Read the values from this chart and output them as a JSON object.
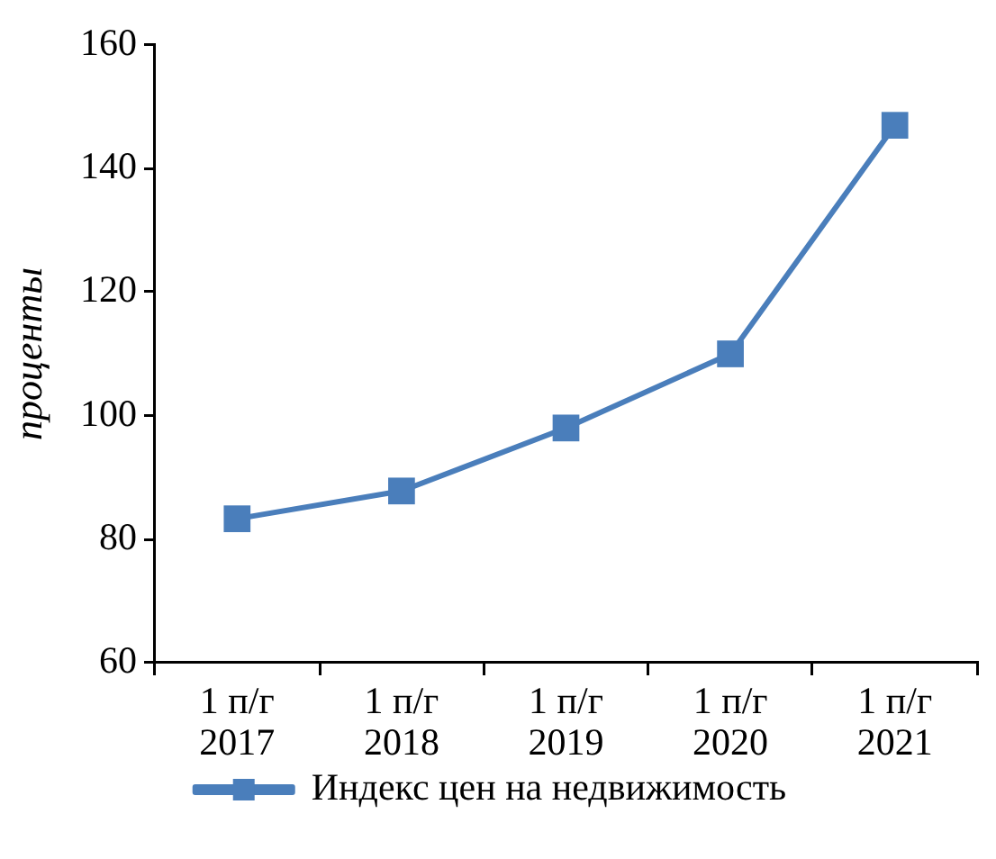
{
  "chart_data": {
    "type": "line",
    "ylabel": "проценты",
    "categories": [
      "1 п/г 2017",
      "1 п/г 2018",
      "1 п/г 2019",
      "1 п/г 2020",
      "1 п/г 2021"
    ],
    "series": [
      {
        "name": "Индекс цен на недвижимость",
        "color": "#4a7ebb",
        "values": [
          83.3,
          87.8,
          98,
          110,
          147
        ]
      }
    ],
    "ylim": [
      60,
      160
    ],
    "yticks": [
      60,
      80,
      100,
      120,
      140,
      160
    ],
    "legend": "bottom",
    "marker": "square",
    "line_style": "solid"
  }
}
